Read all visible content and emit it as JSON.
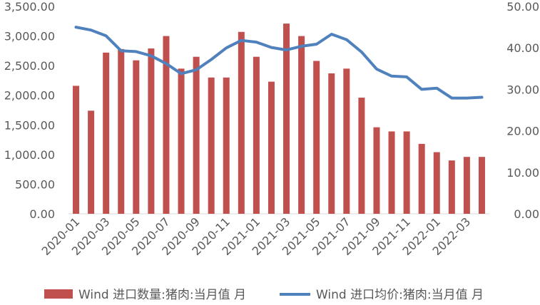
{
  "chart_data": {
    "type": "bar+line",
    "categories": [
      "2020-01",
      "2020-02",
      "2020-03",
      "2020-04",
      "2020-05",
      "2020-06",
      "2020-07",
      "2020-08",
      "2020-09",
      "2020-10",
      "2020-11",
      "2020-12",
      "2021-01",
      "2021-02",
      "2021-03",
      "2021-04",
      "2021-05",
      "2021-06",
      "2021-07",
      "2021-08",
      "2021-09",
      "2021-10",
      "2021-11",
      "2021-12",
      "2022-01",
      "2022-02",
      "2022-03",
      "2022-04"
    ],
    "x_tick_labels": [
      "2020-01",
      "2020-03",
      "2020-05",
      "2020-07",
      "2020-09",
      "2020-11",
      "2021-01",
      "2021-03",
      "2021-05",
      "2021-07",
      "2021-09",
      "2021-11",
      "2022-01",
      "2022-03"
    ],
    "series": [
      {
        "name": "Wind 进口数量:猪肉:当月值 月",
        "type": "bar",
        "axis": "left",
        "color": "#C0504D",
        "values": [
          2160,
          1740,
          2720,
          2780,
          2590,
          2790,
          3000,
          2450,
          2650,
          2300,
          2300,
          3070,
          2650,
          2230,
          3210,
          3000,
          2580,
          2370,
          2450,
          1960,
          1460,
          1390,
          1390,
          1180,
          1040,
          900,
          960,
          960
        ]
      },
      {
        "name": "Wind 进口均价:猪肉:当月值 月",
        "type": "line",
        "axis": "right",
        "color": "#4F81BD",
        "values": [
          45.0,
          44.3,
          42.9,
          39.3,
          39.1,
          38.1,
          36.2,
          33.8,
          34.7,
          37.2,
          40.0,
          41.8,
          41.4,
          40.1,
          39.5,
          40.4,
          40.9,
          43.3,
          42.0,
          39.0,
          34.9,
          33.2,
          33.0,
          30.0,
          30.3,
          27.9,
          27.9,
          28.1
        ]
      }
    ],
    "y_left": {
      "ylim": [
        0,
        3500
      ],
      "ticks": [
        "0.00",
        "500.00",
        "1,000.00",
        "1,500.00",
        "2,000.00",
        "2,500.00",
        "3,000.00",
        "3,500.00"
      ]
    },
    "y_right": {
      "ylim": [
        0,
        50
      ],
      "ticks": [
        "0.00",
        "10.00",
        "20.00",
        "30.00",
        "40.00",
        "50.00"
      ]
    },
    "grid": false,
    "legend_placement": "bottom"
  }
}
